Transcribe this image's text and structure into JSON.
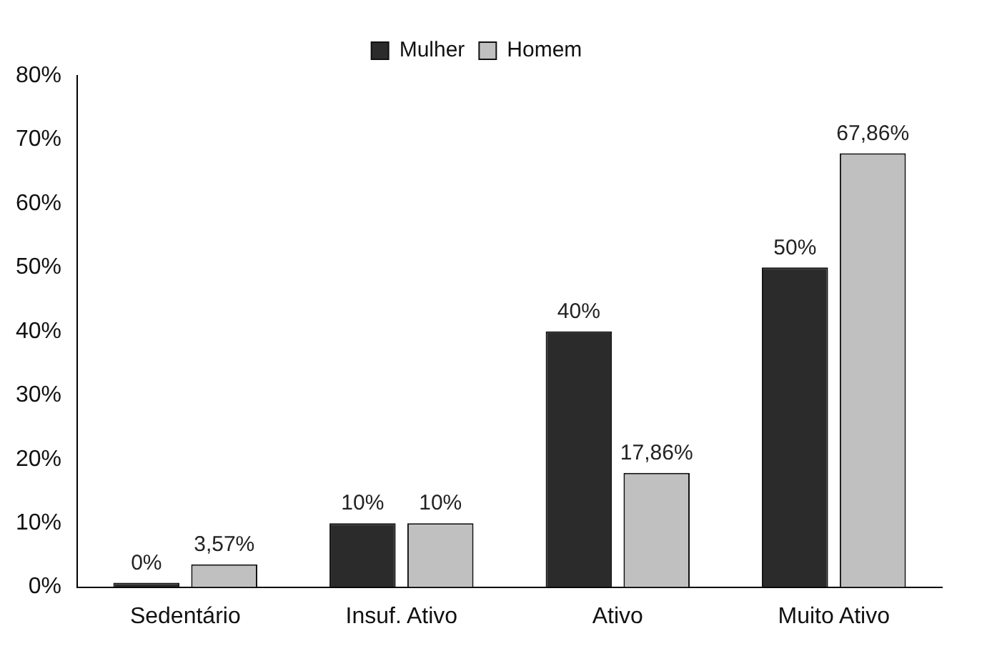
{
  "chart_data": {
    "type": "bar",
    "categories": [
      "Sedentário",
      "Insuf. Ativo",
      "Ativo",
      "Muito Ativo"
    ],
    "series": [
      {
        "name": "Mulher",
        "color": "#2b2b2b",
        "values": [
          0,
          10,
          40,
          50
        ],
        "value_labels": [
          "0%",
          "10%",
          "40%",
          "50%"
        ]
      },
      {
        "name": "Homem",
        "color": "#c0c0c0",
        "values": [
          3.57,
          10,
          17.86,
          67.86
        ],
        "value_labels": [
          "3,57%",
          "10%",
          "17,86%",
          "67,86%"
        ]
      }
    ],
    "ylim": [
      0,
      80
    ],
    "yticks": [
      {
        "value": 0,
        "label": "0%"
      },
      {
        "value": 10,
        "label": "10%"
      },
      {
        "value": 20,
        "label": "20%"
      },
      {
        "value": 30,
        "label": "30%"
      },
      {
        "value": 40,
        "label": "40%"
      },
      {
        "value": 50,
        "label": "50%"
      },
      {
        "value": 60,
        "label": "60%"
      },
      {
        "value": 70,
        "label": "70%"
      },
      {
        "value": 80,
        "label": "80%"
      }
    ],
    "grid": false,
    "legend": "top"
  }
}
